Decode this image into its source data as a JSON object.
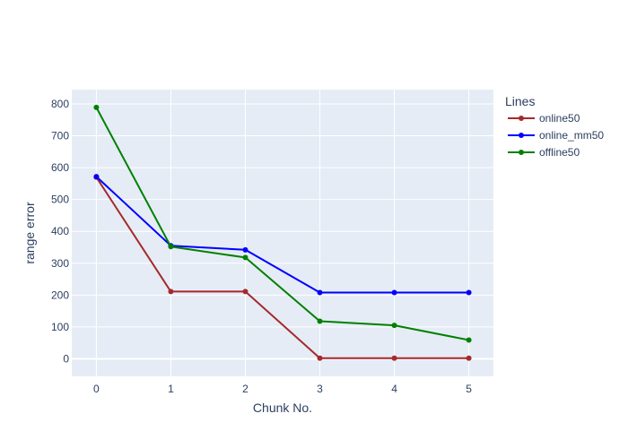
{
  "chart_data": {
    "type": "line",
    "title": "",
    "xlabel": "Chunk No.",
    "ylabel": "range error",
    "x": [
      0,
      1,
      2,
      3,
      4,
      5
    ],
    "xlim": [
      -0.33,
      5.33
    ],
    "ylim": [
      -55,
      845
    ],
    "xticks": [
      0,
      1,
      2,
      3,
      4,
      5
    ],
    "yticks": [
      0,
      100,
      200,
      300,
      400,
      500,
      600,
      700,
      800
    ],
    "grid": true,
    "legend": {
      "title": "Lines",
      "placement": "top-right outside"
    },
    "series": [
      {
        "name": "online50",
        "color": "#a52a2a",
        "values": [
          570,
          211,
          211,
          2,
          2,
          2
        ]
      },
      {
        "name": "online_mm50",
        "color": "#0000ff",
        "values": [
          572,
          355,
          342,
          208,
          208,
          208
        ]
      },
      {
        "name": "offline50",
        "color": "#008000",
        "values": [
          789,
          352,
          318,
          118,
          105,
          59
        ]
      }
    ],
    "plot_bgcolor": "#e5ecf6",
    "text_color": "#2a3f5f"
  }
}
